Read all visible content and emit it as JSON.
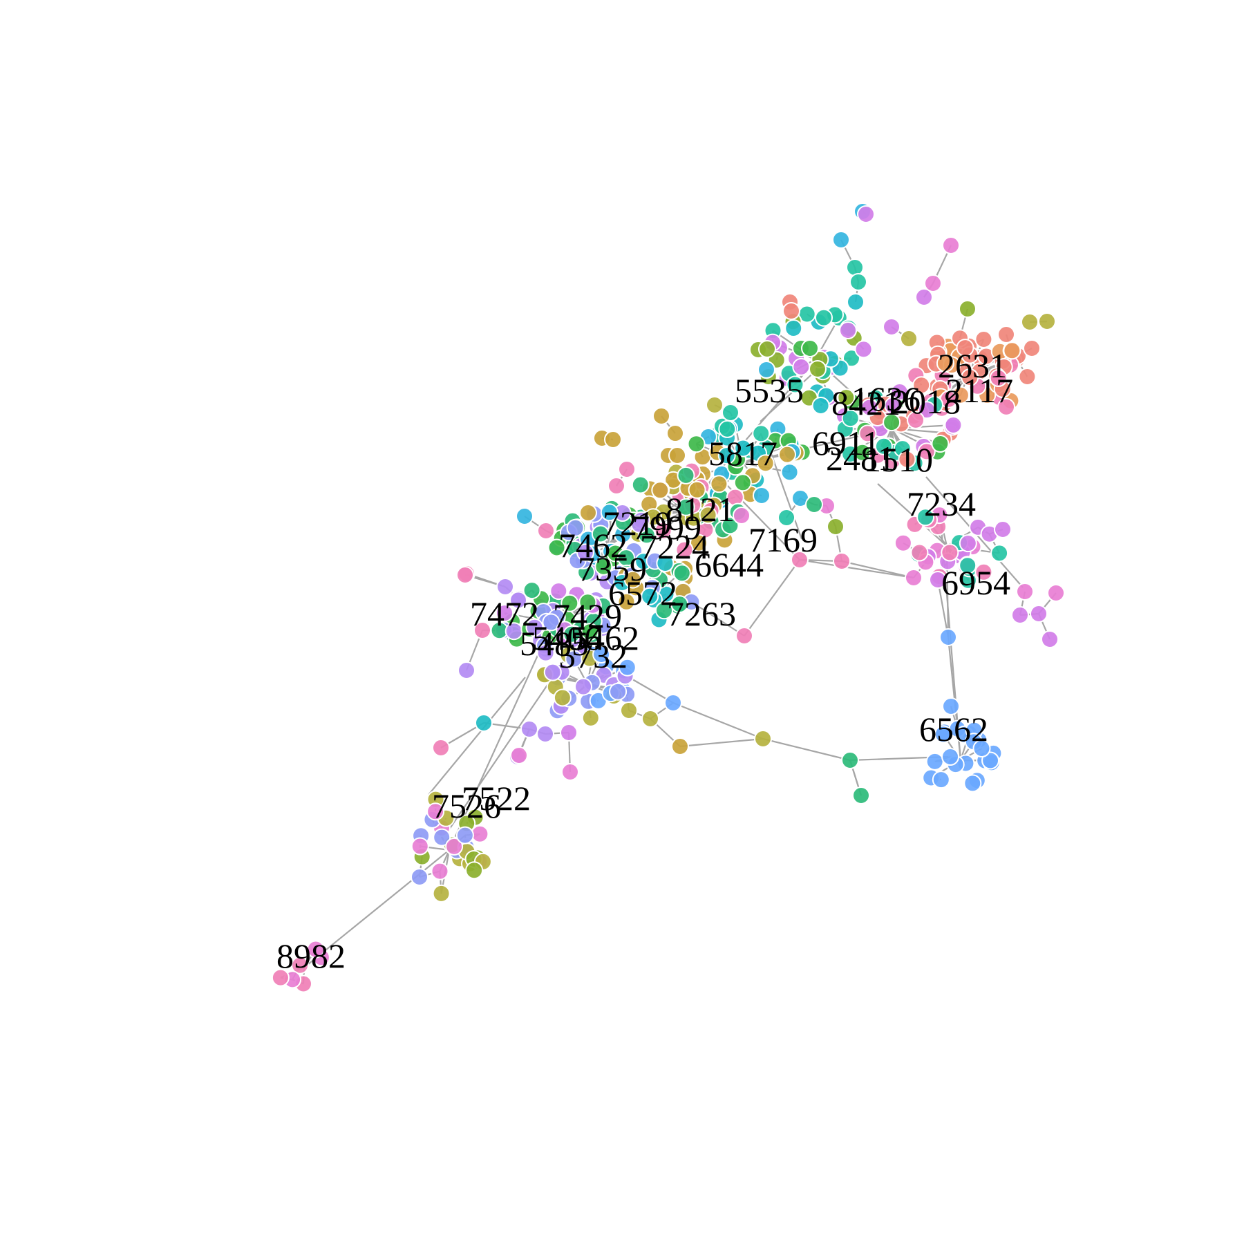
{
  "colors": {
    "background": "#ffffff",
    "edge": "#a6a6a6",
    "label": "#000000",
    "palette": [
      "#f0857a",
      "#e99a5c",
      "#c9a33a",
      "#b5b23f",
      "#8bb02e",
      "#3eb84a",
      "#2dbb7a",
      "#25c4a4",
      "#1fbcc4",
      "#34b5e0",
      "#6aa8ff",
      "#8e9bf5",
      "#b38bf3",
      "#d17de8",
      "#e87ed4",
      "#f07fb6"
    ]
  },
  "labels": [
    "2631",
    "2117",
    "5535",
    "8421",
    "1636",
    "2018",
    "6911",
    "2481",
    "1510",
    "5817",
    "7234",
    "8121",
    "7219",
    "7999",
    "7462",
    "7224",
    "7169",
    "7359",
    "6644",
    "6954",
    "6572",
    "7472",
    "7429",
    "7263",
    "5485",
    "5406",
    "5462",
    "5732",
    "6562",
    "7522",
    "7526",
    "8982"
  ]
}
